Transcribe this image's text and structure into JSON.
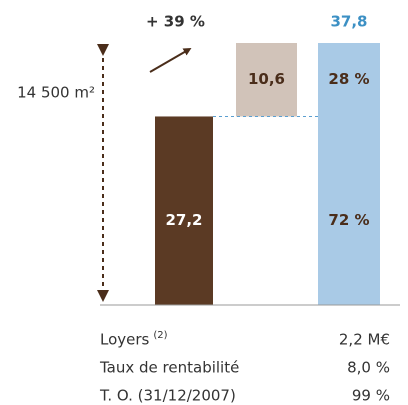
{
  "chart_data": {
    "type": "waterfall",
    "annotation": "+ 39 %",
    "area_label": "14 500 m²",
    "bars": [
      {
        "value": 27.2,
        "label": "27,2",
        "color": "#5b3a24"
      },
      {
        "value": 10.6,
        "label": "10,6",
        "color": "#d1c3b9"
      }
    ],
    "total": {
      "value": 37.8,
      "label": "37,8",
      "color": "#a9cae6",
      "label_color": "#3c90c4"
    },
    "shares": {
      "values": [
        72,
        28
      ],
      "value_labels": [
        "72 %",
        "28 %"
      ]
    }
  },
  "table": {
    "rows": [
      {
        "label": "Loyers",
        "note": "(2)",
        "value": "2,2 M€"
      },
      {
        "label": "Taux de rentabilité",
        "value": "8,0 %"
      },
      {
        "label": "T. O. (31/12/2007)",
        "value": "99 %"
      }
    ]
  }
}
